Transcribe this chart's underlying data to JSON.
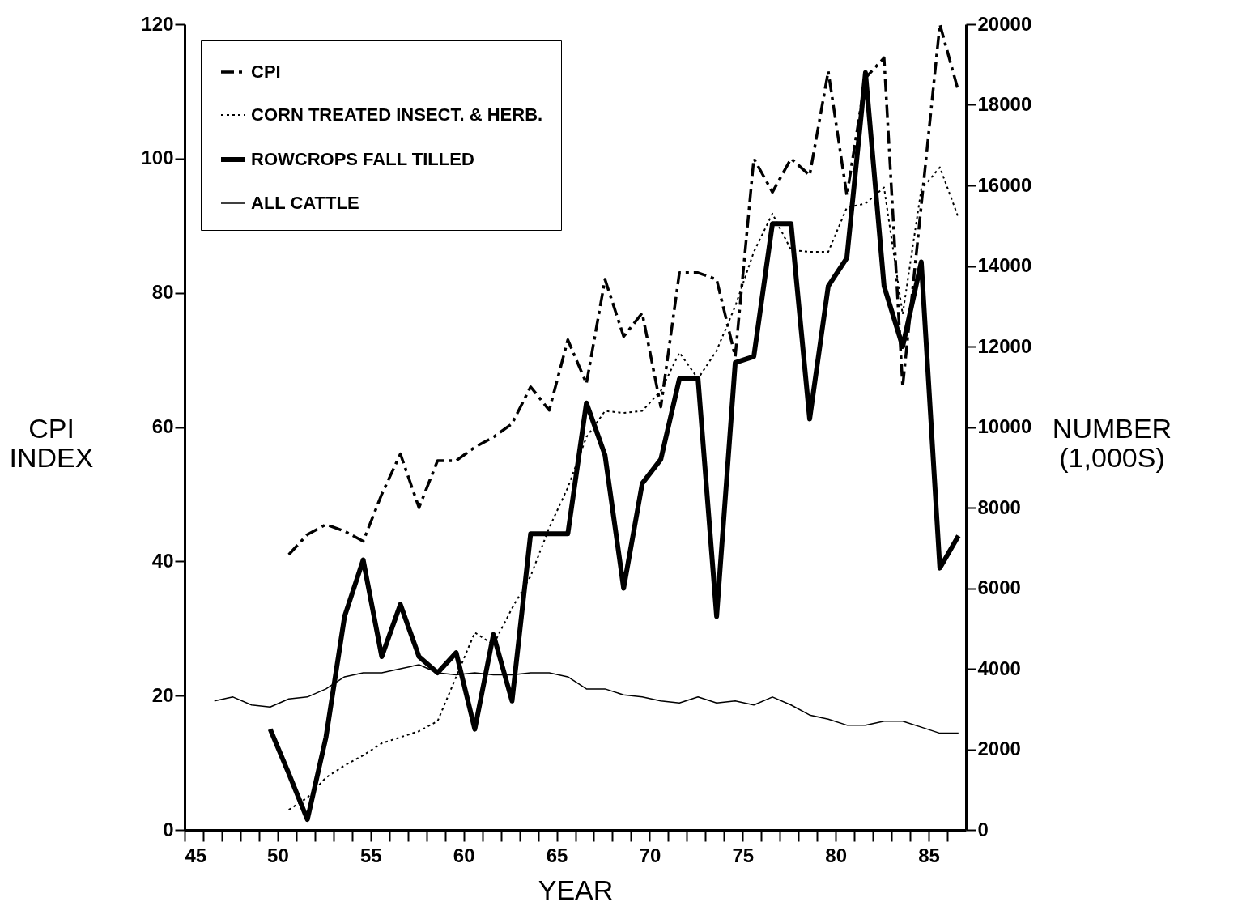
{
  "chart_data": {
    "type": "line",
    "xlabel": "YEAR",
    "ylabel": "CPI INDEX",
    "y2label": "NUMBER (1,000S)",
    "xlim": [
      45,
      87
    ],
    "xticks": [
      45,
      {
        "value": 46,
        "label": null
      },
      {
        "value": 47,
        "label": null
      },
      {
        "value": 48,
        "label": null
      },
      {
        "value": 49,
        "label": null
      },
      50,
      {
        "value": 51,
        "label": null
      },
      {
        "value": 52,
        "label": null
      },
      {
        "value": 53,
        "label": null
      },
      {
        "value": 54,
        "label": null
      },
      55,
      {
        "value": 56,
        "label": null
      },
      {
        "value": 57,
        "label": null
      },
      {
        "value": 58,
        "label": null
      },
      {
        "value": 59,
        "label": null
      },
      60,
      {
        "value": 61,
        "label": null
      },
      {
        "value": 62,
        "label": null
      },
      {
        "value": 63,
        "label": null
      },
      {
        "value": 64,
        "label": null
      },
      65,
      {
        "value": 66,
        "label": null
      },
      {
        "value": 67,
        "label": null
      },
      {
        "value": 68,
        "label": null
      },
      {
        "value": 69,
        "label": null
      },
      70,
      {
        "value": 71,
        "label": null
      },
      {
        "value": 72,
        "label": null
      },
      {
        "value": 73,
        "label": null
      },
      {
        "value": 74,
        "label": null
      },
      75,
      {
        "value": 76,
        "label": null
      },
      {
        "value": 77,
        "label": null
      },
      {
        "value": 78,
        "label": null
      },
      {
        "value": 79,
        "label": null
      },
      80,
      {
        "value": 81,
        "label": null
      },
      {
        "value": 82,
        "label": null
      },
      {
        "value": 83,
        "label": null
      },
      {
        "value": 84,
        "label": null
      },
      85,
      {
        "value": 86,
        "label": null
      }
    ],
    "ylim": [
      0,
      120
    ],
    "yticks": [
      0,
      20,
      40,
      60,
      80,
      100,
      120
    ],
    "y2lim": [
      0,
      20000
    ],
    "y2ticks": [
      0,
      2000,
      4000,
      6000,
      8000,
      10000,
      12000,
      14000,
      16000,
      18000,
      20000
    ],
    "legend": "top left",
    "marker": "none",
    "series": [
      {
        "name": "CPI",
        "color": "#000000",
        "line_style": "dashed",
        "x": [
          50.6,
          51.6,
          52.6,
          53.6,
          54.6,
          55.6,
          56.6,
          57.6,
          58.6,
          59.6,
          60.6,
          61.6,
          62.6,
          63.6,
          64.6,
          65.6,
          66.6,
          67.6,
          68.6,
          69.6,
          70.6,
          71.6,
          72.6,
          73.6,
          74.6,
          75.6,
          76.6,
          77.6,
          78.6,
          79.6,
          80.6,
          81.6,
          82.6,
          83.6,
          84.6,
          85.6,
          86.6
        ],
        "values": [
          41,
          44,
          45.5,
          44.5,
          43,
          50,
          56,
          48,
          55,
          55,
          57,
          58.5,
          60.5,
          66,
          62.5,
          73,
          66.5,
          82,
          73.5,
          77,
          63,
          83,
          83,
          82,
          70.5,
          100,
          95,
          100,
          97.5,
          113,
          94.5,
          112,
          115,
          66,
          93,
          120,
          110
        ]
      },
      {
        "name": "CORN TREATED INSECT. & HERB.",
        "color": "#000000",
        "line_style": "dotted",
        "axis": "y2",
        "x": [
          50.6,
          51.6,
          52.6,
          53.6,
          54.6,
          55.6,
          56.6,
          57.6,
          58.6,
          59.6,
          60.6,
          61.6,
          62.6,
          63.6,
          64.6,
          65.6,
          66.6,
          67.6,
          68.6,
          69.6,
          70.6,
          71.6,
          72.6,
          73.6,
          74.6,
          75.6,
          76.6,
          77.6,
          78.6,
          79.6,
          80.6,
          81.6,
          82.6,
          83.6,
          84.6,
          85.6,
          86.6
        ],
        "values": [
          500,
          800,
          1300,
          1600,
          1850,
          2150,
          2300,
          2450,
          2700,
          3800,
          4900,
          4600,
          5500,
          6300,
          7500,
          8500,
          9750,
          10400,
          10350,
          10400,
          10900,
          11850,
          11200,
          11900,
          13000,
          14350,
          15300,
          14400,
          14350,
          14350,
          15450,
          15550,
          15950,
          12800,
          15900,
          16450,
          15200
        ]
      },
      {
        "name": "ROWCROPS FALL TILLED",
        "color": "#000000",
        "line_style": "solid",
        "axis": "y2",
        "x": [
          49.6,
          50.6,
          51.6,
          52.6,
          53.6,
          54.6,
          55.6,
          56.6,
          57.6,
          58.6,
          59.6,
          60.6,
          61.6,
          62.6,
          63.6,
          64.6,
          65.6,
          66.6,
          67.6,
          68.6,
          69.6,
          70.6,
          71.6,
          72.6,
          73.6,
          74.6,
          75.6,
          76.6,
          77.6,
          78.6,
          79.6,
          80.6,
          81.6,
          82.6,
          83.6,
          84.6,
          85.6,
          86.6
        ],
        "values": [
          2500,
          1400,
          260,
          2300,
          5300,
          6700,
          4300,
          5600,
          4300,
          3900,
          4400,
          2500,
          4850,
          3200,
          7350,
          7350,
          7350,
          10600,
          9300,
          6000,
          8600,
          9200,
          11200,
          11200,
          5300,
          11600,
          11750,
          15050,
          15050,
          10200,
          13500,
          14200,
          18800,
          13500,
          12000,
          14100,
          6500,
          7300
        ]
      },
      {
        "name": "ALL CATTLE",
        "color": "#000000",
        "line_style": "solid",
        "axis": "y2",
        "x": [
          46.6,
          47.6,
          48.6,
          49.6,
          50.6,
          51.6,
          52.6,
          53.6,
          54.6,
          55.6,
          56.6,
          57.6,
          58.6,
          59.6,
          60.6,
          61.6,
          62.6,
          63.6,
          64.6,
          65.6,
          66.6,
          67.6,
          68.6,
          69.6,
          70.6,
          71.6,
          72.6,
          73.6,
          74.6,
          75.6,
          76.6,
          77.6,
          78.6,
          79.6,
          80.6,
          81.6,
          82.6,
          83.6,
          84.6,
          85.6,
          86.6
        ],
        "values": [
          3200,
          3300,
          3100,
          3050,
          3250,
          3300,
          3500,
          3800,
          3900,
          3900,
          4000,
          4100,
          3900,
          3850,
          3900,
          3850,
          3850,
          3900,
          3900,
          3800,
          3500,
          3500,
          3350,
          3300,
          3200,
          3150,
          3300,
          3150,
          3200,
          3100,
          3300,
          3100,
          2850,
          2750,
          2600,
          2600,
          2700,
          2700,
          2550,
          2400,
          2400
        ]
      }
    ]
  }
}
